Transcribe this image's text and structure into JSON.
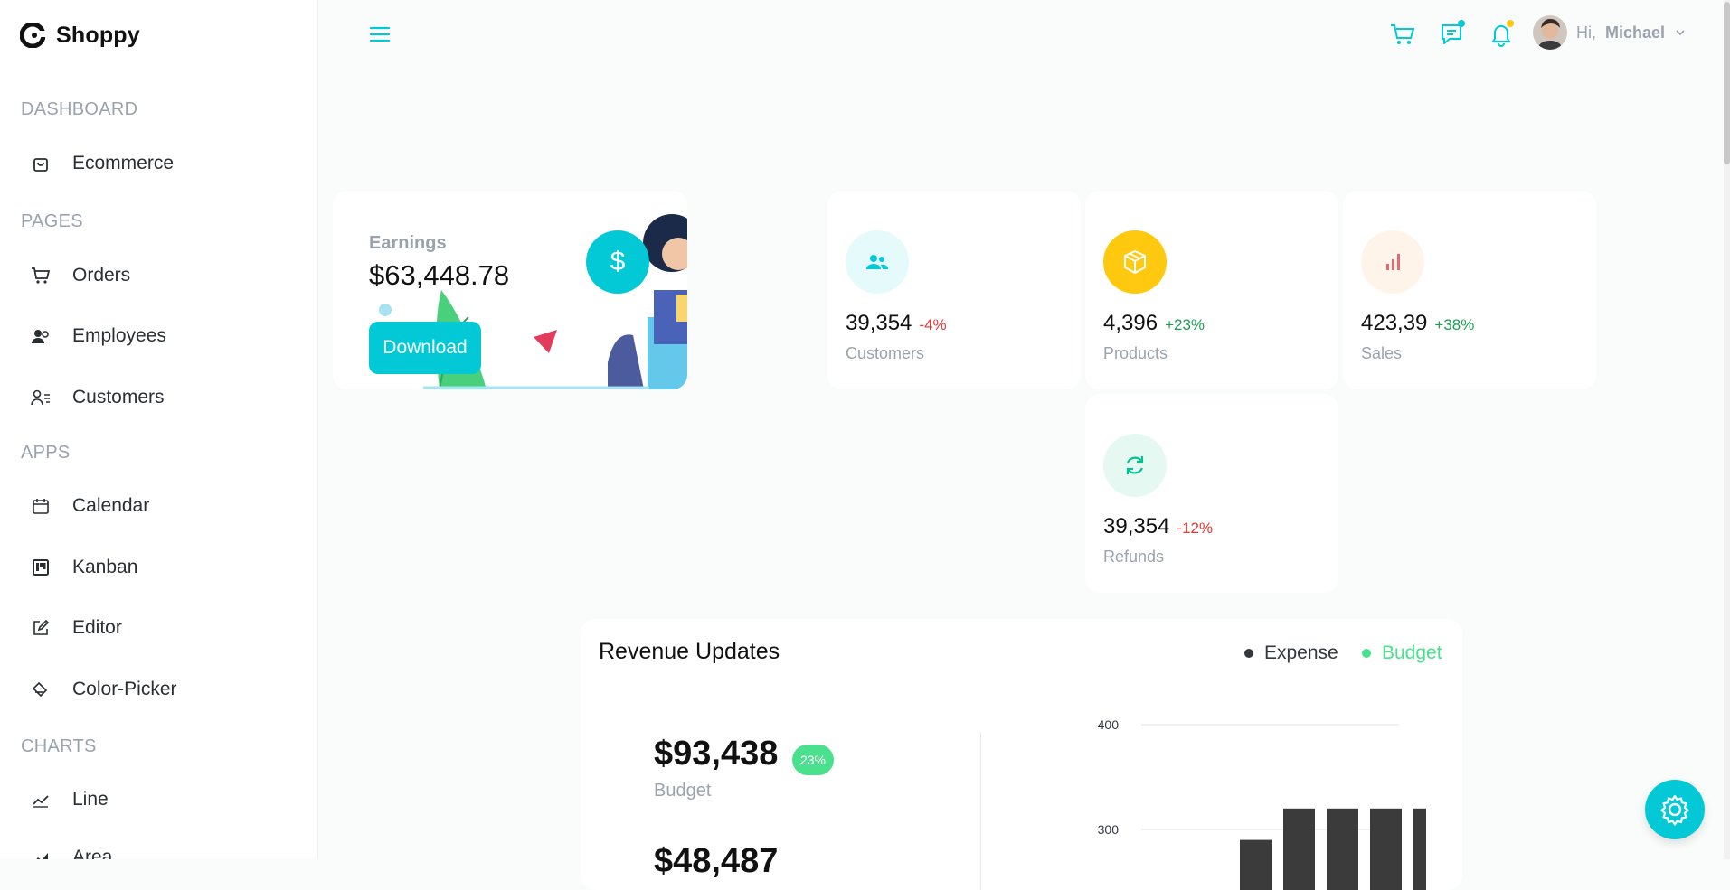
{
  "brand": {
    "name": "Shoppy"
  },
  "sidebar": {
    "sections": [
      {
        "title": "DASHBOARD",
        "items": [
          {
            "label": "Ecommerce",
            "icon": "shopping-bag-icon"
          }
        ]
      },
      {
        "title": "PAGES",
        "items": [
          {
            "label": "Orders",
            "icon": "cart-icon"
          },
          {
            "label": "Employees",
            "icon": "people-icon"
          },
          {
            "label": "Customers",
            "icon": "contacts-icon"
          }
        ]
      },
      {
        "title": "APPS",
        "items": [
          {
            "label": "Calendar",
            "icon": "calendar-icon"
          },
          {
            "label": "Kanban",
            "icon": "kanban-icon"
          },
          {
            "label": "Editor",
            "icon": "edit-icon"
          },
          {
            "label": "Color-Picker",
            "icon": "color-fill-icon"
          }
        ]
      },
      {
        "title": "CHARTS",
        "items": [
          {
            "label": "Line",
            "icon": "line-chart-icon"
          },
          {
            "label": "Area",
            "icon": "area-chart-icon"
          }
        ]
      }
    ]
  },
  "topbar": {
    "greeting": "Hi,",
    "user_name": "Michael",
    "accent": "#03c9d7",
    "chat_dot_color": "#03c9d7",
    "notification_dot_color": "#fec90f"
  },
  "earnings": {
    "title": "Earnings",
    "value": "$63,448.78",
    "button_label": "Download",
    "badge_symbol": "$"
  },
  "stats": [
    {
      "amount": "39,354",
      "percentage": "-4%",
      "label": "Customers",
      "icon": "customers-icon",
      "icon_color": "#03c9d7",
      "icon_bg": "#e5fafb",
      "pct_color": "#e53935"
    },
    {
      "amount": "4,396",
      "percentage": "+23%",
      "label": "Products",
      "icon": "box-icon",
      "icon_color": "#ffffff",
      "icon_bg": "#fec90f",
      "pct_color": "#1a9f53"
    },
    {
      "amount": "423,39",
      "percentage": "+38%",
      "label": "Sales",
      "icon": "bar-chart-icon",
      "icon_color": "#e46a76",
      "icon_bg": "#fff4ea",
      "pct_color": "#1a9f53"
    },
    {
      "amount": "39,354",
      "percentage": "-12%",
      "label": "Refunds",
      "icon": "refresh-icon",
      "icon_color": "#00c292",
      "icon_bg": "#e5f9f2",
      "pct_color": "#e53935"
    }
  ],
  "revenue": {
    "title": "Revenue Updates",
    "legend": [
      {
        "label": "Expense",
        "color": "#33373e"
      },
      {
        "label": "Budget",
        "color": "#4ae08e"
      }
    ],
    "budget_value": "$93,438",
    "budget_badge": "23%",
    "budget_label": "Budget",
    "expense_value": "$48,487"
  },
  "chart_data": {
    "type": "bar",
    "series": [
      {
        "values": [
          290,
          320,
          320,
          320,
          320
        ]
      }
    ],
    "y_ticks": [
      400,
      300
    ],
    "ylim": [
      0,
      400
    ],
    "grid": true
  }
}
